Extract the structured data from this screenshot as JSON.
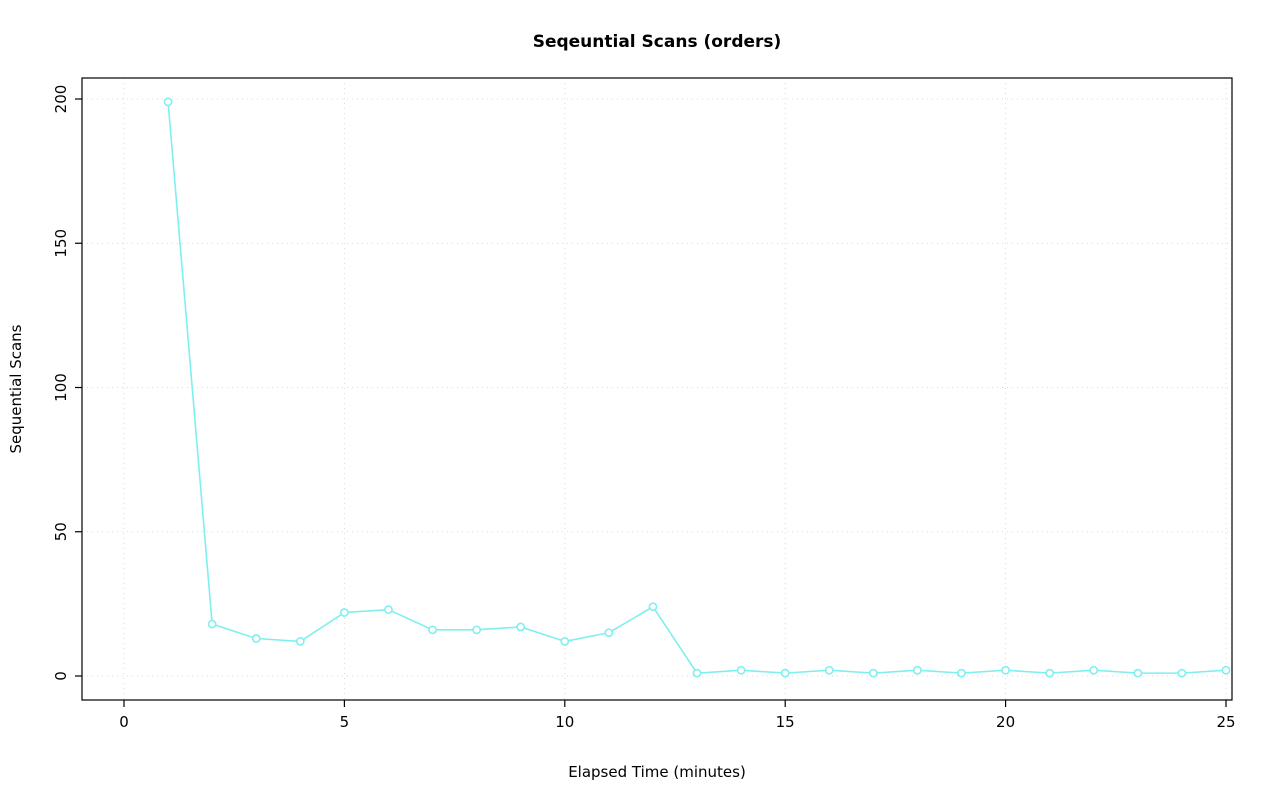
{
  "chart_data": {
    "type": "line",
    "title": "Seqeuntial Scans (orders)",
    "xlabel": "Elapsed Time (minutes)",
    "ylabel": "Sequential Scans",
    "x": [
      1,
      2,
      3,
      4,
      5,
      6,
      7,
      8,
      9,
      10,
      11,
      12,
      13,
      14,
      15,
      16,
      17,
      18,
      19,
      20,
      21,
      22,
      23,
      24,
      25
    ],
    "values": [
      199,
      18,
      13,
      12,
      22,
      23,
      16,
      16,
      17,
      12,
      15,
      24,
      1,
      2,
      1,
      2,
      1,
      2,
      1,
      2,
      1,
      2,
      1,
      1,
      2
    ],
    "xlim": [
      0,
      25
    ],
    "ylim": [
      0,
      200
    ],
    "xticks": [
      0,
      5,
      10,
      15,
      20,
      25
    ],
    "yticks": [
      0,
      50,
      100,
      150,
      200
    ],
    "grid": "dotted",
    "legend": "none",
    "marker": "open-circle",
    "line_color": "#7FEFEF",
    "grid_color": "#D9D9D9",
    "axis_color": "#000000",
    "background": "#FFFFFF"
  }
}
